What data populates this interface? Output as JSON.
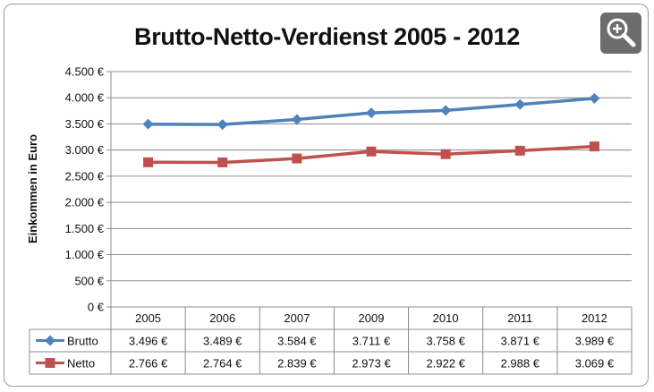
{
  "chart_data": {
    "type": "line",
    "title": "Brutto-Netto-Verdienst 2005 - 2012",
    "ylabel": "Einkommen in Euro",
    "xlabel": "",
    "categories": [
      "2005",
      "2006",
      "2007",
      "2009",
      "2010",
      "2011",
      "2012"
    ],
    "ylim": [
      0,
      4500
    ],
    "yticks": [
      0,
      500,
      1000,
      1500,
      2000,
      2500,
      3000,
      3500,
      4000,
      4500
    ],
    "ytick_labels": [
      "0 €",
      "500 €",
      "1.000 €",
      "1.500 €",
      "2.000 €",
      "2.500 €",
      "3.000 €",
      "3.500 €",
      "4.000 €",
      "4.500 €"
    ],
    "grid": true,
    "legend": "data-table",
    "series": [
      {
        "name": "Brutto",
        "color": "#4f81bd",
        "marker": "diamond",
        "values": [
          3496,
          3489,
          3584,
          3711,
          3758,
          3871,
          3989
        ],
        "labels": [
          "3.496 €",
          "3.489 €",
          "3.584 €",
          "3.711 €",
          "3.758 €",
          "3.871 €",
          "3.989 €"
        ]
      },
      {
        "name": "Netto",
        "color": "#c0504d",
        "marker": "square",
        "values": [
          2766,
          2764,
          2839,
          2973,
          2922,
          2988,
          3069
        ],
        "labels": [
          "2.766 €",
          "2.764 €",
          "2.839 €",
          "2.973 €",
          "2.922 €",
          "2.988 €",
          "3.069 €"
        ]
      }
    ]
  },
  "toolbar": {
    "zoom_icon": "zoom-in-icon"
  }
}
